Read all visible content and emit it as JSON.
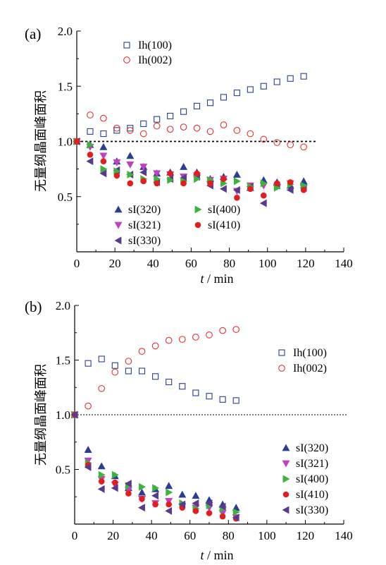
{
  "chart_data": [
    {
      "type": "scatter",
      "panel_label": "(a)",
      "xlabel_var": "t",
      "xlabel_unit": " / min",
      "ylabel": "无量纲晶面峰面积",
      "xlim": [
        0,
        140
      ],
      "ylim": [
        0.0,
        2.0
      ],
      "x_ticks": [
        "0",
        "20",
        "40",
        "60",
        "80",
        "100",
        "120",
        "140"
      ],
      "y_ticks": [
        "0.5",
        "1.0",
        "1.5",
        "2.0"
      ],
      "reference_line": {
        "y": 1.0,
        "style": "dotted"
      },
      "series": [
        {
          "name": "Ih(100)",
          "marker": "square-open",
          "color": "#2a3f8f",
          "x": [
            0,
            7,
            14,
            21,
            28,
            35,
            42,
            49,
            56,
            63,
            70,
            77,
            84,
            91,
            98,
            105,
            112,
            119
          ],
          "y": [
            1.0,
            1.09,
            1.07,
            1.1,
            1.12,
            1.16,
            1.2,
            1.23,
            1.27,
            1.32,
            1.35,
            1.4,
            1.44,
            1.47,
            1.5,
            1.54,
            1.57,
            1.59
          ]
        },
        {
          "name": "Ih(002)",
          "marker": "circle-open",
          "color": "#e03030",
          "x": [
            0,
            7,
            14,
            21,
            28,
            35,
            42,
            49,
            56,
            63,
            70,
            77,
            84,
            91,
            98,
            105,
            112,
            119
          ],
          "y": [
            1.0,
            1.24,
            1.21,
            1.12,
            1.1,
            1.07,
            1.14,
            1.11,
            1.13,
            1.12,
            1.09,
            1.15,
            1.1,
            1.07,
            1.02,
            0.99,
            0.97,
            0.95
          ]
        },
        {
          "name": "sI(320)",
          "marker": "triangle-up",
          "color": "#2a3f8f",
          "x": [
            0,
            7,
            14,
            21,
            28,
            35,
            42,
            49,
            56,
            63,
            70,
            77,
            84,
            91,
            98,
            105,
            112,
            119
          ],
          "y": [
            1.0,
            0.97,
            0.95,
            0.82,
            0.87,
            0.77,
            0.71,
            0.72,
            0.77,
            0.72,
            0.66,
            0.68,
            0.7,
            0.58,
            0.65,
            0.63,
            0.6,
            0.64
          ]
        },
        {
          "name": "sI(321)",
          "marker": "triangle-down",
          "color": "#c040c0",
          "x": [
            0,
            7,
            14,
            21,
            28,
            35,
            42,
            49,
            56,
            63,
            70,
            77,
            84,
            91,
            98,
            105,
            112,
            119
          ],
          "y": [
            1.0,
            0.95,
            0.87,
            0.81,
            0.79,
            0.77,
            0.71,
            0.7,
            0.68,
            0.69,
            0.65,
            0.66,
            0.55,
            0.6,
            0.6,
            0.59,
            0.62,
            0.58
          ]
        },
        {
          "name": "sI(330)",
          "marker": "triangle-left",
          "color": "#5a3a8f",
          "x": [
            0,
            7,
            14,
            21,
            28,
            35,
            42,
            49,
            56,
            63,
            70,
            77,
            84,
            91,
            98,
            105,
            112,
            119
          ],
          "y": [
            1.0,
            0.82,
            0.71,
            0.74,
            0.7,
            0.72,
            0.63,
            0.66,
            0.67,
            0.68,
            0.6,
            0.57,
            0.56,
            0.59,
            0.44,
            0.6,
            0.56,
            0.58
          ]
        },
        {
          "name": "sI(400)",
          "marker": "triangle-right",
          "color": "#3cb43c",
          "x": [
            0,
            7,
            14,
            21,
            28,
            35,
            42,
            49,
            56,
            63,
            70,
            77,
            84,
            91,
            98,
            105,
            112,
            119
          ],
          "y": [
            1.0,
            0.97,
            0.75,
            0.73,
            0.7,
            0.66,
            0.66,
            0.65,
            0.64,
            0.66,
            0.65,
            0.62,
            0.64,
            0.59,
            0.62,
            0.58,
            0.61,
            0.6
          ]
        },
        {
          "name": "sI(410)",
          "marker": "circle-filled",
          "color": "#e02020",
          "x": [
            0,
            7,
            14,
            21,
            28,
            35,
            42,
            49,
            56,
            63,
            70,
            77,
            84,
            91,
            98,
            105,
            112,
            119
          ],
          "y": [
            1.0,
            0.88,
            0.82,
            0.69,
            0.62,
            0.64,
            0.62,
            0.71,
            0.62,
            0.71,
            0.62,
            0.66,
            0.49,
            0.57,
            0.51,
            0.62,
            0.63,
            0.56
          ]
        }
      ],
      "legend_top": {
        "items": [
          "Ih(100)",
          "Ih(002)"
        ]
      },
      "legend_bottom": {
        "columns": [
          [
            "sI(320)",
            "sI(321)",
            "sI(330)"
          ],
          [
            "sI(400)",
            "sI(410)"
          ]
        ]
      }
    },
    {
      "type": "scatter",
      "panel_label": "(b)",
      "xlabel_var": "t",
      "xlabel_unit": " / min",
      "ylabel": "无量纲晶面峰面积",
      "xlim": [
        0,
        140
      ],
      "ylim": [
        0.0,
        2.0
      ],
      "x_ticks": [
        "0",
        "20",
        "40",
        "60",
        "80",
        "100",
        "120",
        "140"
      ],
      "y_ticks": [
        "0.5",
        "1.0",
        "1.5",
        "2.0"
      ],
      "reference_line": {
        "y": 1.0,
        "style": "dotted"
      },
      "series": [
        {
          "name": "Ih(100)",
          "marker": "square-open",
          "color": "#2a3f8f",
          "x": [
            0,
            7,
            14,
            21,
            28,
            35,
            42,
            49,
            56,
            63,
            70,
            77,
            84
          ],
          "y": [
            1.0,
            1.47,
            1.51,
            1.45,
            1.4,
            1.4,
            1.35,
            1.3,
            1.26,
            1.2,
            1.17,
            1.14,
            1.13
          ]
        },
        {
          "name": "Ih(002)",
          "marker": "circle-open",
          "color": "#e03030",
          "x": [
            0,
            7,
            14,
            21,
            28,
            35,
            42,
            49,
            56,
            63,
            70,
            77,
            84
          ],
          "y": [
            1.0,
            1.08,
            1.24,
            1.39,
            1.49,
            1.58,
            1.63,
            1.68,
            1.69,
            1.71,
            1.73,
            1.77,
            1.78
          ]
        },
        {
          "name": "sI(320)",
          "marker": "triangle-up",
          "color": "#2a3f8f",
          "x": [
            0,
            7,
            14,
            21,
            28,
            35,
            42,
            49,
            56,
            63,
            70,
            77,
            84
          ],
          "y": [
            1.0,
            0.68,
            0.53,
            0.44,
            0.33,
            0.29,
            0.32,
            0.35,
            0.27,
            0.26,
            0.22,
            0.18,
            0.15
          ]
        },
        {
          "name": "sI(321)",
          "marker": "triangle-down",
          "color": "#c040c0",
          "x": [
            0,
            7,
            14,
            21,
            28,
            35,
            42,
            49,
            56,
            63,
            70,
            77,
            84
          ],
          "y": [
            1.0,
            0.58,
            0.41,
            0.36,
            0.31,
            0.23,
            0.19,
            0.21,
            0.16,
            0.15,
            0.15,
            0.1,
            0.06
          ]
        },
        {
          "name": "sI(400)",
          "marker": "triangle-right",
          "color": "#3cb43c",
          "x": [
            0,
            7,
            14,
            21,
            28,
            35,
            42,
            49,
            56,
            63,
            70,
            77,
            84
          ],
          "y": [
            1.0,
            0.56,
            0.45,
            0.45,
            0.35,
            0.34,
            0.33,
            0.29,
            0.19,
            0.14,
            0.17,
            0.14,
            0.11
          ]
        },
        {
          "name": "sI(410)",
          "marker": "circle-filled",
          "color": "#e02020",
          "x": [
            0,
            7,
            14,
            21,
            28,
            35,
            42,
            49,
            56,
            63,
            70,
            77,
            84
          ],
          "y": [
            1.0,
            0.54,
            0.39,
            0.38,
            0.28,
            0.23,
            0.18,
            0.18,
            0.15,
            0.12,
            0.1,
            0.07,
            0.05
          ]
        },
        {
          "name": "sI(330)",
          "marker": "triangle-left",
          "color": "#5a3a8f",
          "x": [
            0,
            7,
            14,
            21,
            28,
            35,
            42,
            49,
            56,
            63,
            70,
            77,
            84
          ],
          "y": [
            1.0,
            0.52,
            0.32,
            0.33,
            0.37,
            0.15,
            0.26,
            0.12,
            0.18,
            0.19,
            0.19,
            0.16,
            0.06
          ]
        }
      ],
      "legend_top": {
        "items": [
          "Ih(100)",
          "Ih(002)"
        ]
      },
      "legend_bottom": {
        "columns": [
          [
            "sI(320)",
            "sI(321)",
            "sI(400)",
            "sI(410)",
            "sI(330)"
          ]
        ]
      }
    }
  ]
}
